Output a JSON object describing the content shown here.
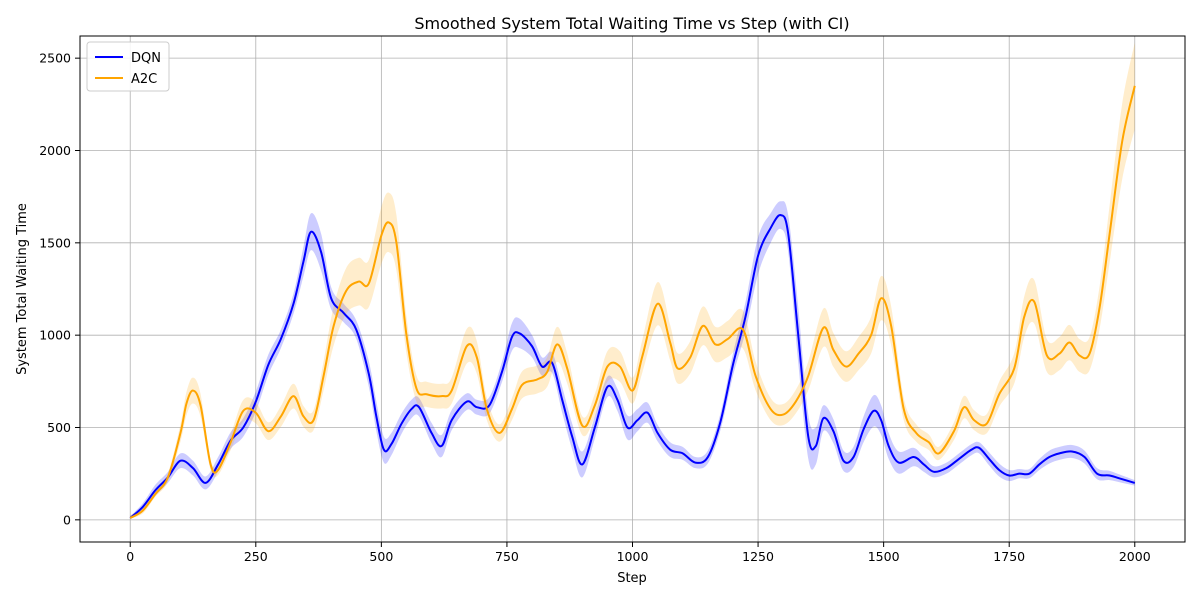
{
  "chart_data": {
    "type": "line",
    "title": "Smoothed System Total Waiting Time vs Step (with CI)",
    "xlabel": "Step",
    "ylabel": "System Total Waiting Time",
    "xlim": [
      -100,
      2100
    ],
    "ylim": [
      -120,
      2620
    ],
    "xticks": [
      0,
      250,
      500,
      750,
      1000,
      1250,
      1500,
      1750,
      2000
    ],
    "yticks": [
      0,
      500,
      1000,
      1500,
      2000,
      2500
    ],
    "grid": true,
    "legend": "top-left",
    "series": [
      {
        "name": "DQN",
        "color": "#0000ff",
        "band_color": "#0000ff",
        "x": [
          0,
          25,
          50,
          75,
          100,
          125,
          150,
          175,
          200,
          225,
          250,
          275,
          300,
          325,
          345,
          360,
          380,
          400,
          425,
          450,
          475,
          490,
          505,
          520,
          540,
          560,
          575,
          600,
          620,
          640,
          670,
          690,
          715,
          740,
          760,
          775,
          800,
          820,
          840,
          860,
          880,
          900,
          925,
          950,
          970,
          990,
          1010,
          1030,
          1050,
          1075,
          1100,
          1125,
          1150,
          1175,
          1200,
          1225,
          1250,
          1275,
          1295,
          1310,
          1330,
          1350,
          1365,
          1380,
          1400,
          1420,
          1440,
          1460,
          1480,
          1495,
          1510,
          1530,
          1560,
          1580,
          1600,
          1625,
          1650,
          1675,
          1690,
          1710,
          1730,
          1750,
          1770,
          1790,
          1810,
          1830,
          1850,
          1875,
          1900,
          1925,
          1950,
          1975,
          2000
        ],
        "y": [
          10,
          70,
          160,
          230,
          320,
          280,
          200,
          300,
          430,
          500,
          640,
          840,
          980,
          1170,
          1400,
          1560,
          1450,
          1200,
          1120,
          1030,
          790,
          560,
          380,
          410,
          520,
          600,
          610,
          470,
          400,
          540,
          640,
          610,
          620,
          800,
          990,
          1010,
          940,
          830,
          850,
          650,
          450,
          300,
          500,
          720,
          650,
          500,
          540,
          580,
          470,
          380,
          360,
          310,
          340,
          530,
          840,
          1100,
          1430,
          1580,
          1650,
          1550,
          1000,
          450,
          400,
          550,
          480,
          320,
          340,
          490,
          590,
          540,
          400,
          310,
          340,
          300,
          260,
          280,
          330,
          380,
          390,
          330,
          270,
          240,
          250,
          250,
          300,
          340,
          360,
          370,
          340,
          250,
          240,
          220,
          200
        ],
        "ci_halfwidth": [
          10,
          20,
          30,
          30,
          40,
          40,
          35,
          40,
          45,
          50,
          55,
          55,
          50,
          55,
          80,
          100,
          100,
          60,
          50,
          50,
          70,
          80,
          70,
          60,
          55,
          50,
          50,
          55,
          60,
          55,
          45,
          40,
          45,
          55,
          75,
          80,
          60,
          50,
          55,
          70,
          70,
          70,
          60,
          55,
          60,
          65,
          60,
          55,
          45,
          40,
          35,
          30,
          35,
          45,
          60,
          80,
          100,
          80,
          75,
          100,
          150,
          120,
          100,
          70,
          65,
          55,
          55,
          70,
          85,
          80,
          70,
          60,
          50,
          40,
          30,
          30,
          30,
          30,
          30,
          35,
          35,
          30,
          25,
          25,
          30,
          35,
          35,
          35,
          35,
          30,
          25,
          20,
          15
        ]
      },
      {
        "name": "A2C",
        "color": "#ffa500",
        "band_color": "#ffa500",
        "x": [
          0,
          25,
          50,
          75,
          100,
          112,
          125,
          140,
          160,
          175,
          200,
          225,
          250,
          275,
          300,
          325,
          345,
          365,
          385,
          405,
          430,
          455,
          475,
          500,
          515,
          530,
          550,
          570,
          590,
          620,
          640,
          670,
          690,
          710,
          735,
          760,
          780,
          810,
          830,
          850,
          870,
          900,
          925,
          950,
          975,
          1000,
          1020,
          1050,
          1075,
          1090,
          1115,
          1140,
          1165,
          1190,
          1220,
          1245,
          1275,
          1300,
          1325,
          1350,
          1380,
          1400,
          1425,
          1450,
          1475,
          1495,
          1515,
          1540,
          1565,
          1590,
          1610,
          1640,
          1660,
          1680,
          1705,
          1730,
          1760,
          1780,
          1800,
          1825,
          1850,
          1870,
          1890,
          1910,
          1930,
          1950,
          1975,
          2000
        ],
        "y": [
          10,
          50,
          140,
          230,
          470,
          630,
          700,
          620,
          300,
          270,
          420,
          590,
          580,
          480,
          560,
          670,
          560,
          540,
          780,
          1050,
          1240,
          1290,
          1280,
          1540,
          1610,
          1500,
          1000,
          710,
          680,
          670,
          700,
          940,
          880,
          600,
          470,
          600,
          730,
          760,
          800,
          950,
          820,
          510,
          620,
          830,
          830,
          700,
          890,
          1170,
          960,
          820,
          880,
          1050,
          950,
          980,
          1030,
          780,
          600,
          570,
          640,
          780,
          1040,
          920,
          830,
          900,
          1000,
          1200,
          1050,
          600,
          470,
          420,
          360,
          480,
          610,
          540,
          520,
          680,
          820,
          1100,
          1180,
          890,
          900,
          960,
          890,
          900,
          1150,
          1550,
          2050,
          2350
        ]
      }
    ]
  }
}
